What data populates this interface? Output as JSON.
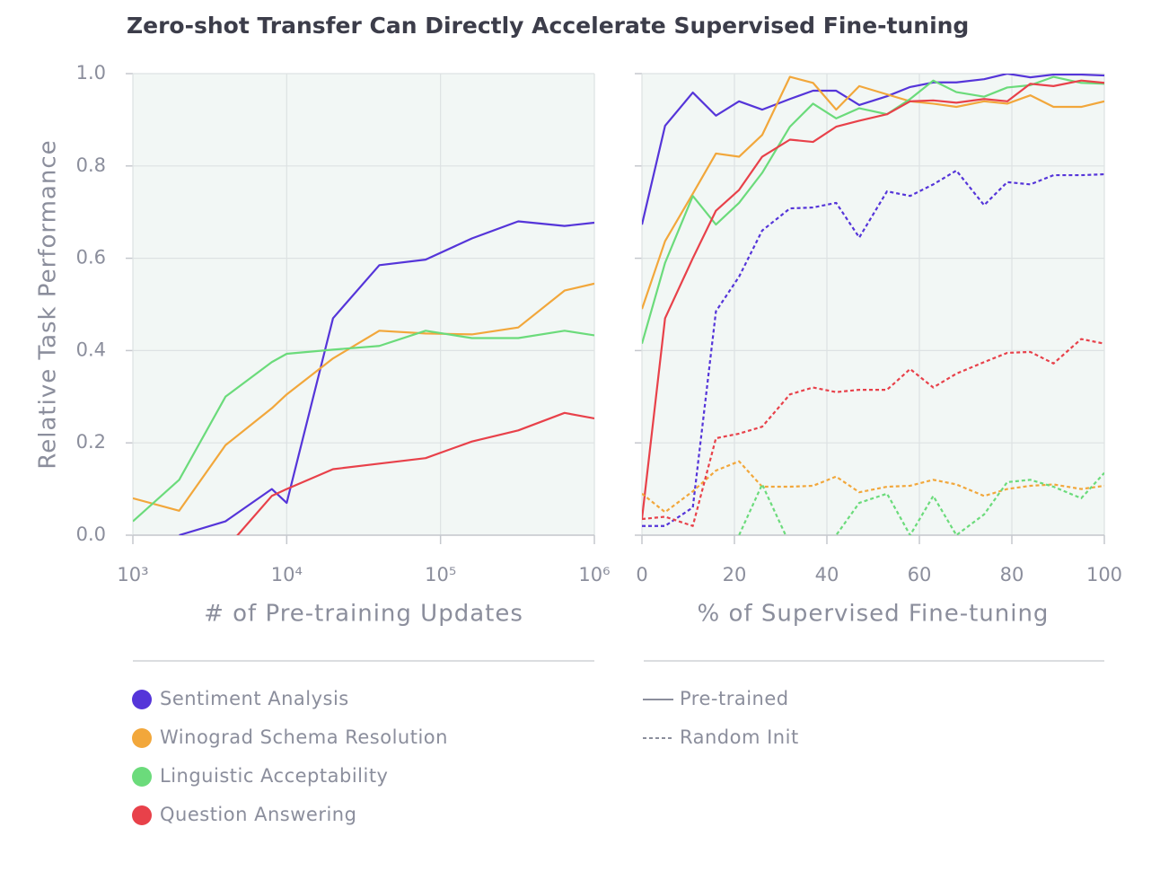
{
  "title": "Zero-shot Transfer Can Directly Accelerate Supervised Fine-tuning",
  "legend": {
    "styles": [
      {
        "name": "Pre-trained",
        "dash": "solid"
      },
      {
        "name": "Random Init",
        "dash": "dotted"
      }
    ]
  },
  "chart_data": [
    {
      "type": "line",
      "xlabel": "# of Pre-training Updates",
      "ylabel": "Relative Task Performance",
      "xscale": "log",
      "xlim": [
        1000,
        1000000
      ],
      "xticks": [
        {
          "value": 1000,
          "label": "10³"
        },
        {
          "value": 10000,
          "label": "10⁴"
        },
        {
          "value": 100000,
          "label": "10⁵"
        },
        {
          "value": 1000000,
          "label": "10⁶"
        }
      ],
      "ylim": [
        0,
        1
      ],
      "yticks": [
        {
          "value": 0,
          "label": "0.0"
        },
        0.2,
        0.4,
        0.6,
        0.8,
        {
          "value": 1,
          "label": "1.0"
        }
      ],
      "show_ytick_labels": true,
      "grid": true,
      "x": [
        1000,
        2000,
        4000,
        8000,
        10000,
        20000,
        40000,
        80000,
        160000,
        320000,
        640000,
        1000000
      ],
      "series": [
        {
          "name": "Sentiment Analysis",
          "color": "#5535d9",
          "dash": "solid",
          "values": [
            null,
            0.0,
            0.03,
            0.1,
            0.07,
            0.47,
            0.585,
            0.597,
            0.643,
            0.68,
            0.67,
            0.677
          ]
        },
        {
          "name": "Winograd Schema Resolution",
          "color": "#f2a73b",
          "dash": "solid",
          "values": [
            0.08,
            0.053,
            0.195,
            0.275,
            0.305,
            0.383,
            0.443,
            0.437,
            0.435,
            0.45,
            0.53,
            0.545
          ]
        },
        {
          "name": "Linguistic Acceptability",
          "color": "#6bdb7b",
          "dash": "solid",
          "values": [
            0.03,
            0.12,
            0.3,
            0.375,
            0.393,
            0.402,
            0.41,
            0.443,
            0.427,
            0.427,
            0.443,
            0.433
          ]
        },
        {
          "name": "Question Answering",
          "color": "#e8414a",
          "dash": "solid",
          "values": [
            null,
            null,
            -0.03,
            0.085,
            0.1,
            0.143,
            0.155,
            0.167,
            0.203,
            0.227,
            0.265,
            0.253
          ]
        }
      ]
    },
    {
      "type": "line",
      "xlabel": "% of Supervised Fine-tuning",
      "xscale": "linear",
      "xlim": [
        0,
        100
      ],
      "xticks": [
        0,
        20,
        40,
        60,
        80,
        100
      ],
      "ylim": [
        0,
        1
      ],
      "yticks": [
        0,
        0.2,
        0.4,
        0.6,
        0.8,
        1
      ],
      "show_ytick_labels": false,
      "grid": true,
      "x": [
        0,
        5,
        11,
        16,
        21,
        26,
        32,
        37,
        42,
        47,
        53,
        58,
        63,
        68,
        74,
        79,
        84,
        89,
        95,
        100
      ],
      "series": [
        {
          "color": "#5535d9",
          "dash": "solid",
          "values": [
            0.673,
            0.887,
            0.959,
            0.909,
            0.94,
            0.922,
            0.945,
            0.963,
            0.963,
            0.932,
            0.951,
            0.971,
            0.981,
            0.981,
            0.988,
            1.0,
            0.992,
            0.998,
            0.998,
            0.996
          ]
        },
        {
          "color": "#f2a73b",
          "dash": "solid",
          "values": [
            0.49,
            0.637,
            0.74,
            0.827,
            0.82,
            0.867,
            0.993,
            0.98,
            0.922,
            0.973,
            0.955,
            0.94,
            0.935,
            0.928,
            0.94,
            0.935,
            0.953,
            0.928,
            0.928,
            0.94
          ]
        },
        {
          "color": "#6bdb7b",
          "dash": "solid",
          "values": [
            0.415,
            0.59,
            0.735,
            0.673,
            0.72,
            0.785,
            0.885,
            0.935,
            0.903,
            0.925,
            0.912,
            0.945,
            0.985,
            0.96,
            0.95,
            0.97,
            0.975,
            0.993,
            0.98,
            0.978
          ]
        },
        {
          "color": "#e8414a",
          "dash": "solid",
          "values": [
            0.035,
            0.47,
            0.6,
            0.703,
            0.748,
            0.82,
            0.857,
            0.852,
            0.885,
            0.898,
            0.912,
            0.94,
            0.942,
            0.937,
            0.945,
            0.94,
            0.978,
            0.973,
            0.985,
            0.98
          ]
        },
        {
          "color": "#5535d9",
          "dash": "dotted",
          "values": [
            0.02,
            0.02,
            0.06,
            0.485,
            0.56,
            0.66,
            0.708,
            0.71,
            0.72,
            0.645,
            0.745,
            0.735,
            0.76,
            0.79,
            0.715,
            0.765,
            0.76,
            0.78,
            0.78,
            0.782
          ]
        },
        {
          "color": "#f2a73b",
          "dash": "dotted",
          "values": [
            0.09,
            0.05,
            0.095,
            0.14,
            0.16,
            0.105,
            0.105,
            0.107,
            0.127,
            0.093,
            0.105,
            0.107,
            0.12,
            0.11,
            0.085,
            0.1,
            0.107,
            0.11,
            0.1,
            0.107
          ]
        },
        {
          "color": "#6bdb7b",
          "dash": "dotted",
          "values": [
            -0.05,
            -0.05,
            -0.05,
            -0.05,
            0.0,
            0.11,
            -0.02,
            -0.05,
            0.0,
            0.07,
            0.09,
            0.0,
            0.085,
            0.0,
            0.045,
            0.115,
            0.12,
            0.105,
            0.08,
            0.135
          ]
        },
        {
          "color": "#e8414a",
          "dash": "dotted",
          "values": [
            0.035,
            0.04,
            0.02,
            0.21,
            0.22,
            0.235,
            0.305,
            0.32,
            0.31,
            0.315,
            0.315,
            0.36,
            0.32,
            0.35,
            0.375,
            0.395,
            0.397,
            0.372,
            0.425,
            0.415
          ]
        }
      ]
    }
  ]
}
